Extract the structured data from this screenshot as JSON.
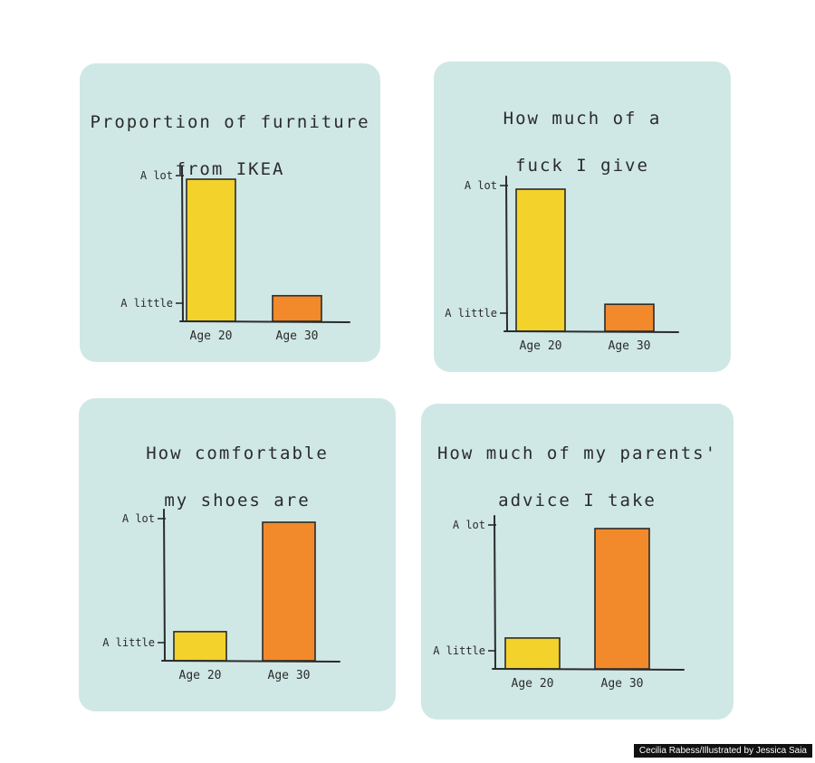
{
  "colors": {
    "background": "#cfe8e5",
    "age20": "#f3d22b",
    "age30": "#f28a2b",
    "ink": "#2b2b2b"
  },
  "credit": "Cecilia Rabess/Illustrated by Jessica Saia",
  "chart_data": [
    {
      "type": "bar",
      "title": "Proportion of furniture from IKEA",
      "title_lines": [
        "Proportion of furniture",
        "from IKEA"
      ],
      "categories": [
        "Age 20",
        "Age 30"
      ],
      "values": [
        1.0,
        0.18
      ],
      "yticklabels": [
        "A little",
        "A lot"
      ],
      "colors": [
        "#f3d22b",
        "#f28a2b"
      ]
    },
    {
      "type": "bar",
      "title": "How much of a fuck I give",
      "title_lines": [
        "How much of a",
        "fuck I give"
      ],
      "categories": [
        "Age 20",
        "Age 30"
      ],
      "values": [
        1.0,
        0.19
      ],
      "yticklabels": [
        "A little",
        "A lot"
      ],
      "colors": [
        "#f3d22b",
        "#f28a2b"
      ]
    },
    {
      "type": "bar",
      "title": "How comfortable my shoes are",
      "title_lines": [
        "How comfortable",
        "my shoes are"
      ],
      "categories": [
        "Age 20",
        "Age 30"
      ],
      "values": [
        0.21,
        1.0
      ],
      "yticklabels": [
        "A little",
        "A lot"
      ],
      "colors": [
        "#f3d22b",
        "#f28a2b"
      ]
    },
    {
      "type": "bar",
      "title": "How much of my parents' advice I take",
      "title_lines": [
        "How much of my parents'",
        "advice I take"
      ],
      "categories": [
        "Age 20",
        "Age 30"
      ],
      "values": [
        0.22,
        1.0
      ],
      "yticklabels": [
        "A little",
        "A lot"
      ],
      "colors": [
        "#f3d22b",
        "#f28a2b"
      ]
    }
  ]
}
